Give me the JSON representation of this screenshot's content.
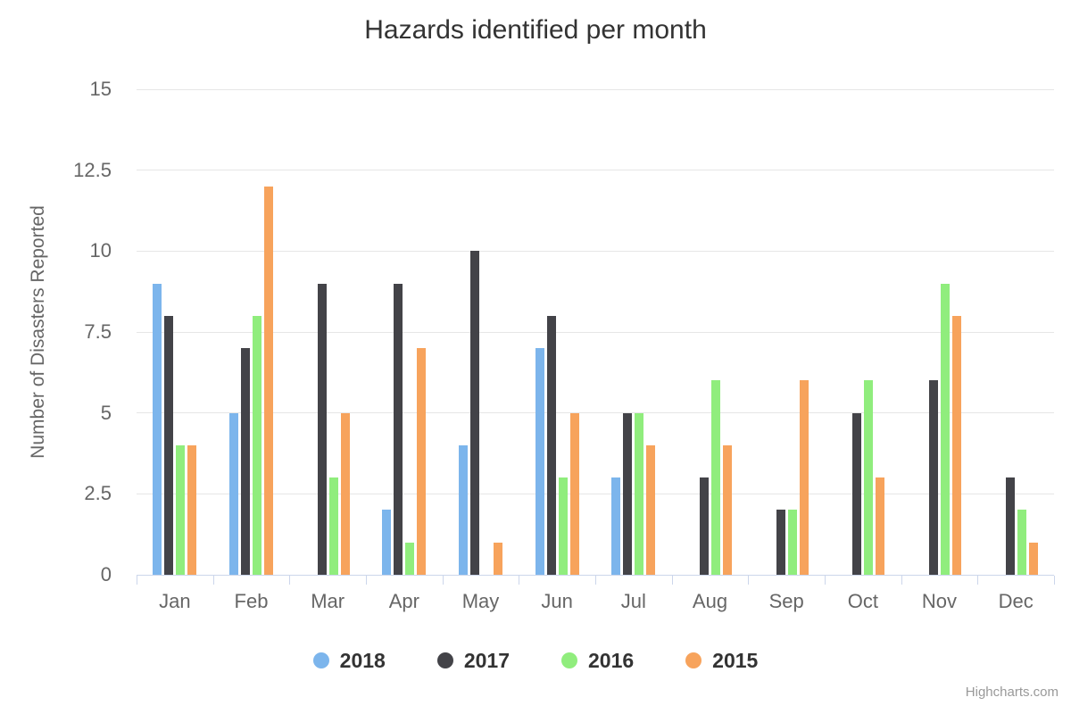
{
  "title": "Hazards identified per month",
  "credits": {
    "label": "Highcharts.com"
  },
  "colors": {
    "title_text": "#333333",
    "axis_text": "#666666",
    "legend_text": "#333333",
    "credits_text": "#999999",
    "gridline": "#e6e6e6",
    "axis_line": "#ccd6eb"
  },
  "chart_data": {
    "type": "bar",
    "title": "Hazards identified per month",
    "xlabel": "",
    "ylabel": "Number of Disasters Reported",
    "ylim": [
      0,
      15
    ],
    "grid": true,
    "legend_position": "bottom",
    "categories": [
      "Jan",
      "Feb",
      "Mar",
      "Apr",
      "May",
      "Jun",
      "Jul",
      "Aug",
      "Sep",
      "Oct",
      "Nov",
      "Dec"
    ],
    "yticks": [
      {
        "value": 0,
        "label": "0"
      },
      {
        "value": 2.5,
        "label": "2.5"
      },
      {
        "value": 5,
        "label": "5"
      },
      {
        "value": 7.5,
        "label": "7.5"
      },
      {
        "value": 10,
        "label": "10"
      },
      {
        "value": 12.5,
        "label": "12.5"
      },
      {
        "value": 15,
        "label": "15"
      }
    ],
    "series": [
      {
        "name": "2018",
        "color": "#7cb5ec",
        "values": [
          9,
          5,
          0,
          2,
          4,
          7,
          3,
          0,
          0,
          0,
          0,
          0
        ]
      },
      {
        "name": "2017",
        "color": "#434348",
        "values": [
          8,
          7,
          9,
          9,
          10,
          8,
          5,
          3,
          2,
          5,
          6,
          3
        ]
      },
      {
        "name": "2016",
        "color": "#90ed7d",
        "values": [
          4,
          8,
          3,
          1,
          0,
          3,
          5,
          6,
          2,
          6,
          9,
          2
        ]
      },
      {
        "name": "2015",
        "color": "#f7a35c",
        "values": [
          4,
          12,
          5,
          7,
          1,
          5,
          4,
          4,
          6,
          3,
          8,
          1
        ]
      }
    ]
  }
}
